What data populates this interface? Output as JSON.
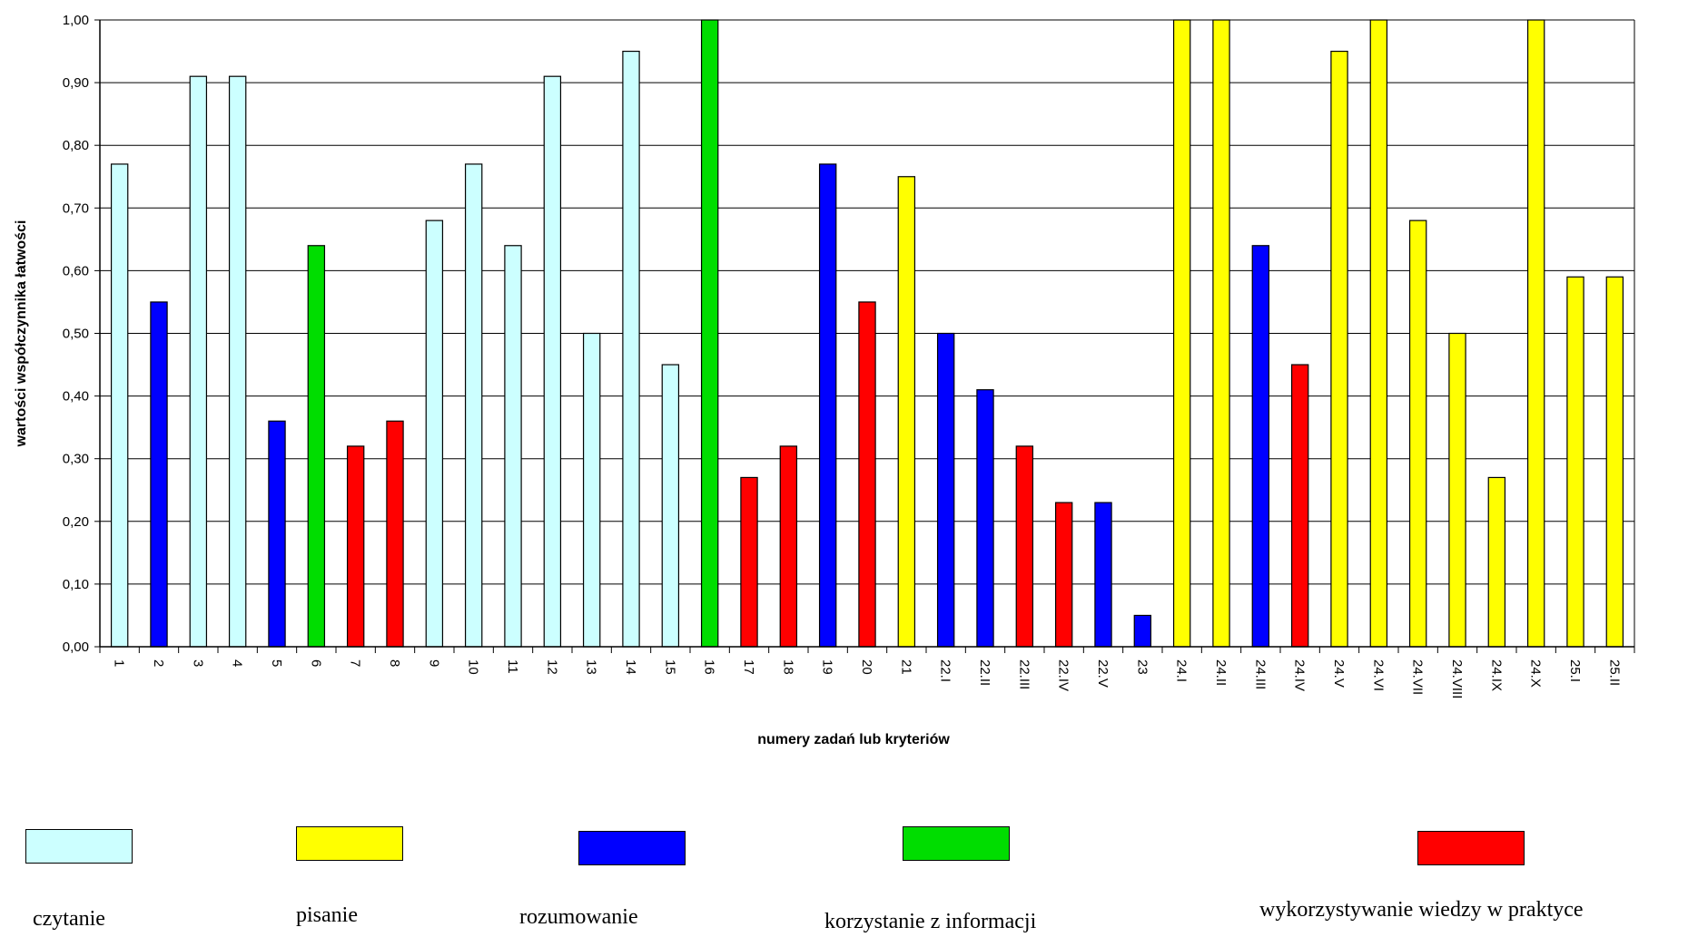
{
  "chart_data": {
    "type": "bar",
    "ylabel": "wartości współczynnika łatwości",
    "xlabel": "numery zadań lub kryteriów",
    "ylim": [
      0,
      1.0
    ],
    "yticks": [
      "0,00",
      "0,10",
      "0,20",
      "0,30",
      "0,40",
      "0,50",
      "0,60",
      "0,70",
      "0,80",
      "0,90",
      "1,00"
    ],
    "grid": true,
    "categories": [
      "1",
      "2",
      "3",
      "4",
      "5",
      "6",
      "7",
      "8",
      "9",
      "10",
      "11",
      "12",
      "13",
      "14",
      "15",
      "16",
      "17",
      "18",
      "19",
      "20",
      "21",
      "22.I",
      "22.II",
      "22.III",
      "22.IV",
      "22.V",
      "23",
      "24.I",
      "24.II",
      "24.III",
      "24.IV",
      "24.V",
      "24.VI",
      "24.VII",
      "24.VIII",
      "24.IX",
      "24.X",
      "25.I",
      "25.II"
    ],
    "values": [
      0.77,
      0.55,
      0.91,
      0.91,
      0.36,
      0.64,
      0.32,
      0.36,
      0.68,
      0.77,
      0.64,
      0.91,
      0.5,
      0.95,
      0.45,
      1.0,
      0.27,
      0.32,
      0.77,
      0.55,
      0.75,
      0.5,
      0.41,
      0.32,
      0.23,
      0.23,
      0.05,
      1.0,
      1.0,
      0.64,
      0.45,
      0.95,
      1.0,
      0.68,
      0.5,
      0.27,
      1.0,
      0.59,
      0.59
    ],
    "groups": [
      "czytanie",
      "rozumowanie",
      "czytanie",
      "czytanie",
      "rozumowanie",
      "korzystanie",
      "wykorzystywanie",
      "wykorzystywanie",
      "czytanie",
      "czytanie",
      "czytanie",
      "czytanie",
      "czytanie",
      "czytanie",
      "czytanie",
      "korzystanie",
      "wykorzystywanie",
      "wykorzystywanie",
      "rozumowanie",
      "wykorzystywanie",
      "pisanie",
      "rozumowanie",
      "rozumowanie",
      "wykorzystywanie",
      "wykorzystywanie",
      "rozumowanie",
      "rozumowanie",
      "pisanie",
      "pisanie",
      "rozumowanie",
      "wykorzystywanie",
      "pisanie",
      "pisanie",
      "pisanie",
      "pisanie",
      "pisanie",
      "pisanie",
      "pisanie",
      "pisanie"
    ],
    "colors": {
      "czytanie": "#ccffff",
      "pisanie": "#ffff00",
      "rozumowanie": "#0000ff",
      "korzystanie": "#00dd00",
      "wykorzystywanie": "#ff0000"
    },
    "legend": [
      {
        "key": "czytanie",
        "label": "czytanie"
      },
      {
        "key": "pisanie",
        "label": "pisanie"
      },
      {
        "key": "rozumowanie",
        "label": "rozumowanie"
      },
      {
        "key": "korzystanie",
        "label": "korzystanie z informacji"
      },
      {
        "key": "wykorzystywanie",
        "label": "wykorzystywanie wiedzy w praktyce"
      }
    ]
  }
}
